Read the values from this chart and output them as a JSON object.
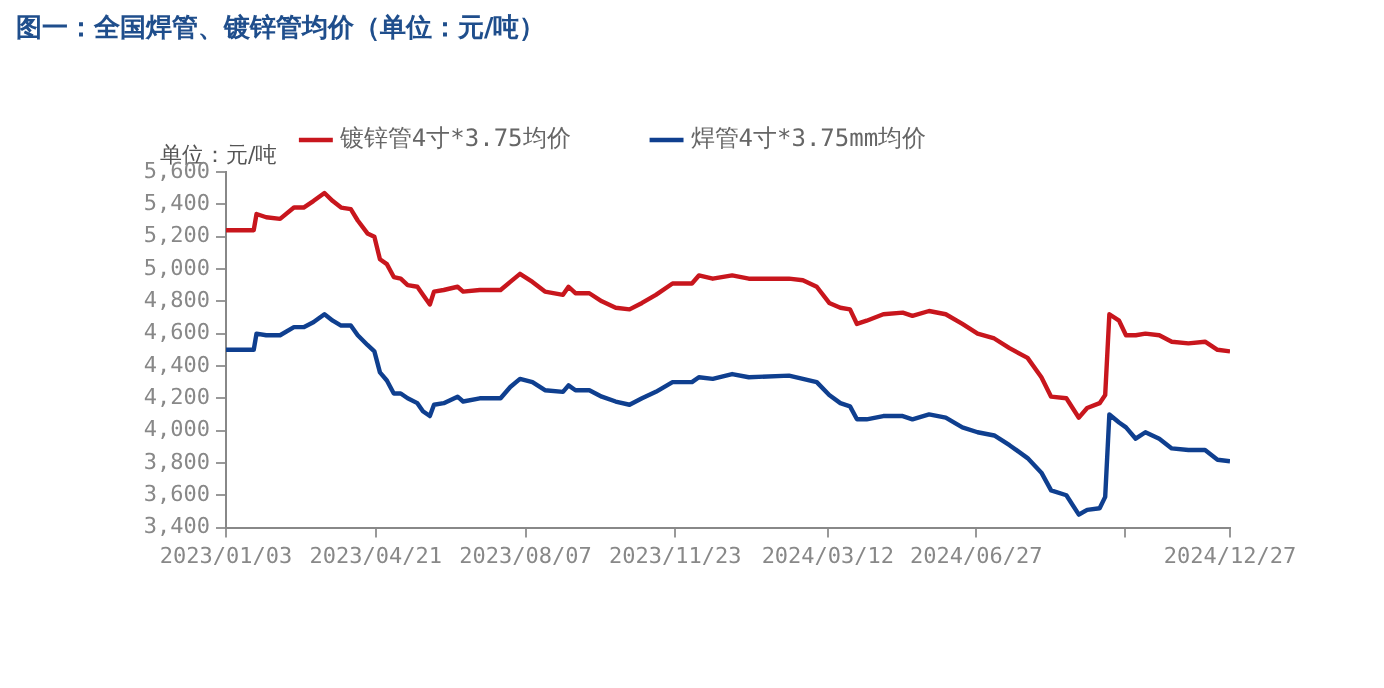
{
  "chart_data": {
    "type": "line",
    "title": "图一：全国焊管、镀锌管均价（单位：元/吨）",
    "ylabel": "单位：元/吨",
    "x": [
      "2023-01-03",
      "2023-01-23",
      "2023-01-25",
      "2023-02-01",
      "2023-02-11",
      "2023-02-21",
      "2023-02-28",
      "2023-03-07",
      "2023-03-15",
      "2023-03-21",
      "2023-03-27",
      "2023-04-03",
      "2023-04-08",
      "2023-04-15",
      "2023-04-20",
      "2023-04-24",
      "2023-04-29",
      "2023-05-04",
      "2023-05-09",
      "2023-05-14",
      "2023-05-21",
      "2023-05-25",
      "2023-05-30",
      "2023-06-02",
      "2023-06-09",
      "2023-06-19",
      "2023-06-23",
      "2023-07-05",
      "2023-07-20",
      "2023-07-27",
      "2023-08-03",
      "2023-08-12",
      "2023-08-21",
      "2023-09-03",
      "2023-09-07",
      "2023-09-12",
      "2023-09-22",
      "2023-10-01",
      "2023-10-11",
      "2023-10-21",
      "2023-10-30",
      "2023-11-09",
      "2023-11-21",
      "2023-12-05",
      "2023-12-10",
      "2023-12-20",
      "2024-01-03",
      "2024-01-15",
      "2024-02-13",
      "2024-02-23",
      "2024-03-04",
      "2024-03-13",
      "2024-03-21",
      "2024-03-28",
      "2024-04-02",
      "2024-04-09",
      "2024-04-21",
      "2024-05-05",
      "2024-05-12",
      "2024-05-24",
      "2024-06-05",
      "2024-06-17",
      "2024-06-28",
      "2024-07-10",
      "2024-07-21",
      "2024-08-03",
      "2024-08-13",
      "2024-08-20",
      "2024-08-31",
      "2024-09-09",
      "2024-09-15",
      "2024-09-24",
      "2024-09-28",
      "2024-10-01",
      "2024-10-08",
      "2024-10-13",
      "2024-10-20",
      "2024-10-27",
      "2024-11-06",
      "2024-11-15",
      "2024-11-27",
      "2024-12-09",
      "2024-12-18",
      "2024-12-27"
    ],
    "series": [
      {
        "name": "镀锌管4寸*3.75均价",
        "color": "#c8161d",
        "values": [
          5240,
          5240,
          5340,
          5320,
          5310,
          5380,
          5380,
          5420,
          5470,
          5420,
          5380,
          5370,
          5300,
          5220,
          5200,
          5060,
          5030,
          4950,
          4940,
          4900,
          4890,
          4840,
          4780,
          4860,
          4870,
          4890,
          4860,
          4870,
          4870,
          4920,
          4970,
          4920,
          4860,
          4840,
          4890,
          4850,
          4850,
          4800,
          4760,
          4750,
          4790,
          4840,
          4910,
          4910,
          4960,
          4940,
          4960,
          4940,
          4940,
          4930,
          4890,
          4790,
          4760,
          4750,
          4660,
          4680,
          4720,
          4730,
          4710,
          4740,
          4720,
          4660,
          4600,
          4570,
          4510,
          4450,
          4330,
          4210,
          4200,
          4080,
          4140,
          4170,
          4220,
          4720,
          4680,
          4590,
          4590,
          4600,
          4590,
          4550,
          4540,
          4550,
          4500,
          4490
        ]
      },
      {
        "name": "焊管4寸*3.75mm均价",
        "color": "#0f3f8f",
        "values": [
          4500,
          4500,
          4600,
          4590,
          4590,
          4640,
          4640,
          4670,
          4720,
          4680,
          4650,
          4650,
          4590,
          4530,
          4490,
          4360,
          4310,
          4230,
          4230,
          4200,
          4170,
          4120,
          4090,
          4160,
          4170,
          4210,
          4180,
          4200,
          4200,
          4270,
          4320,
          4300,
          4250,
          4240,
          4280,
          4250,
          4250,
          4210,
          4180,
          4160,
          4200,
          4240,
          4300,
          4300,
          4330,
          4320,
          4350,
          4330,
          4340,
          4320,
          4300,
          4220,
          4170,
          4150,
          4070,
          4070,
          4090,
          4090,
          4070,
          4100,
          4080,
          4020,
          3990,
          3970,
          3910,
          3830,
          3740,
          3630,
          3600,
          3480,
          3510,
          3520,
          3590,
          4100,
          4050,
          4020,
          3950,
          3990,
          3950,
          3890,
          3880,
          3880,
          3820,
          3810
        ]
      }
    ],
    "xlim": [
      "2023-01-03",
      "2024-12-27"
    ],
    "xticks": [
      {
        "value": "2023-01-03",
        "label": "2023/01/03"
      },
      {
        "value": "2023-04-21",
        "label": "2023/04/21"
      },
      {
        "value": "2023-08-07",
        "label": "2023/08/07"
      },
      {
        "value": "2023-11-23",
        "label": "2023/11/23"
      },
      {
        "value": "2024-03-12",
        "label": "2024/03/12"
      },
      {
        "value": "2024-06-27",
        "label": "2024/06/27"
      },
      {
        "value": "2024-10-12",
        "label": null
      },
      {
        "value": "2024-12-27",
        "label": "2024/12/27"
      }
    ],
    "ylim": [
      3400,
      5600
    ],
    "yticks": [
      {
        "value": 3400,
        "label": "3,400"
      },
      {
        "value": 3600,
        "label": "3,600"
      },
      {
        "value": 3800,
        "label": "3,800"
      },
      {
        "value": 4000,
        "label": "4,000"
      },
      {
        "value": 4200,
        "label": "4,200"
      },
      {
        "value": 4400,
        "label": "4,400"
      },
      {
        "value": 4600,
        "label": "4,600"
      },
      {
        "value": 4800,
        "label": "4,800"
      },
      {
        "value": 5000,
        "label": "5,000"
      },
      {
        "value": 5200,
        "label": "5,200"
      },
      {
        "value": 5400,
        "label": "5,400"
      },
      {
        "value": 5600,
        "label": "5,600"
      }
    ],
    "grid": false,
    "legend": "top",
    "marker": "none",
    "line_style": "solid"
  }
}
